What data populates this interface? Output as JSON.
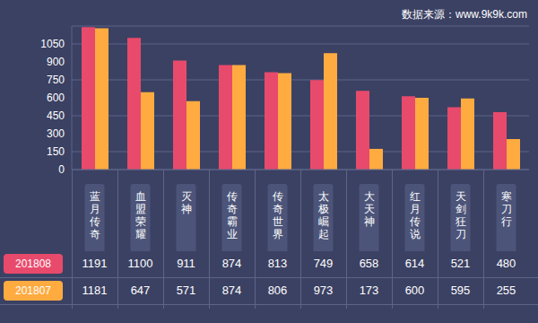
{
  "chart_data": {
    "type": "bar",
    "annotations": [
      "数据来源：www.9k9k.com"
    ],
    "categories": [
      "蓝月传奇",
      "血盟荣耀",
      "灭神",
      "传奇霸业",
      "传奇世界",
      "太极崛起",
      "大天神",
      "红月传说",
      "天剑狂刀",
      "寒刀行"
    ],
    "series": [
      {
        "name": "201808",
        "color": "#e84a6c",
        "values": [
          1191,
          1100,
          911,
          874,
          813,
          749,
          658,
          614,
          521,
          480
        ]
      },
      {
        "name": "201807",
        "color": "#ffab40",
        "values": [
          1181,
          647,
          571,
          874,
          806,
          973,
          173,
          600,
          595,
          255
        ]
      }
    ],
    "ylim": [
      0,
      1200
    ],
    "yticks": [
      0,
      150,
      300,
      450,
      600,
      750,
      900,
      1050
    ],
    "grid": true,
    "data_labels": true
  }
}
